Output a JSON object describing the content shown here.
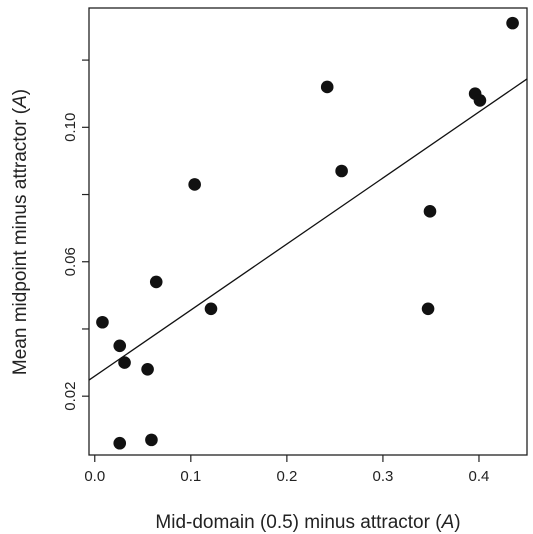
{
  "chart_data": {
    "type": "scatter",
    "title": "",
    "xlabel": "Mid-domain (0.5) minus attractor (A)",
    "xlabel_main": "Mid-domain (0.5) minus attractor (",
    "xlabel_var": "A",
    "xlabel_close": ")",
    "ylabel": "Mean midpoint minus attractor (A)",
    "ylabel_main": "Mean midpoint minus attractor (",
    "ylabel_var": "A",
    "ylabel_close": ")",
    "xlim": [
      -0.006,
      0.45
    ],
    "ylim": [
      0.0025,
      0.1355
    ],
    "xticks": [
      0.0,
      0.1,
      0.2,
      0.3,
      0.4
    ],
    "xtick_labels": [
      "0.0",
      "0.1",
      "0.2",
      "0.3",
      "0.4"
    ],
    "yticks": [
      0.02,
      0.04,
      0.06,
      0.08,
      0.1,
      0.12
    ],
    "ytick_labels": [
      "0.02",
      "",
      "0.06",
      "",
      "0.10",
      ""
    ],
    "points": [
      {
        "x": 0.008,
        "y": 0.042
      },
      {
        "x": 0.026,
        "y": 0.035
      },
      {
        "x": 0.026,
        "y": 0.006
      },
      {
        "x": 0.031,
        "y": 0.03
      },
      {
        "x": 0.055,
        "y": 0.028
      },
      {
        "x": 0.059,
        "y": 0.007
      },
      {
        "x": 0.064,
        "y": 0.054
      },
      {
        "x": 0.104,
        "y": 0.083
      },
      {
        "x": 0.121,
        "y": 0.046
      },
      {
        "x": 0.242,
        "y": 0.112
      },
      {
        "x": 0.257,
        "y": 0.087
      },
      {
        "x": 0.347,
        "y": 0.046
      },
      {
        "x": 0.349,
        "y": 0.075
      },
      {
        "x": 0.396,
        "y": 0.11
      },
      {
        "x": 0.401,
        "y": 0.108
      },
      {
        "x": 0.435,
        "y": 0.131
      }
    ],
    "fit_line": {
      "x": [
        -0.006,
        0.45
      ],
      "y": [
        0.0248,
        0.1144
      ]
    },
    "grid": false,
    "legend": "none",
    "point_color": "#111111",
    "line_color": "#111111"
  }
}
